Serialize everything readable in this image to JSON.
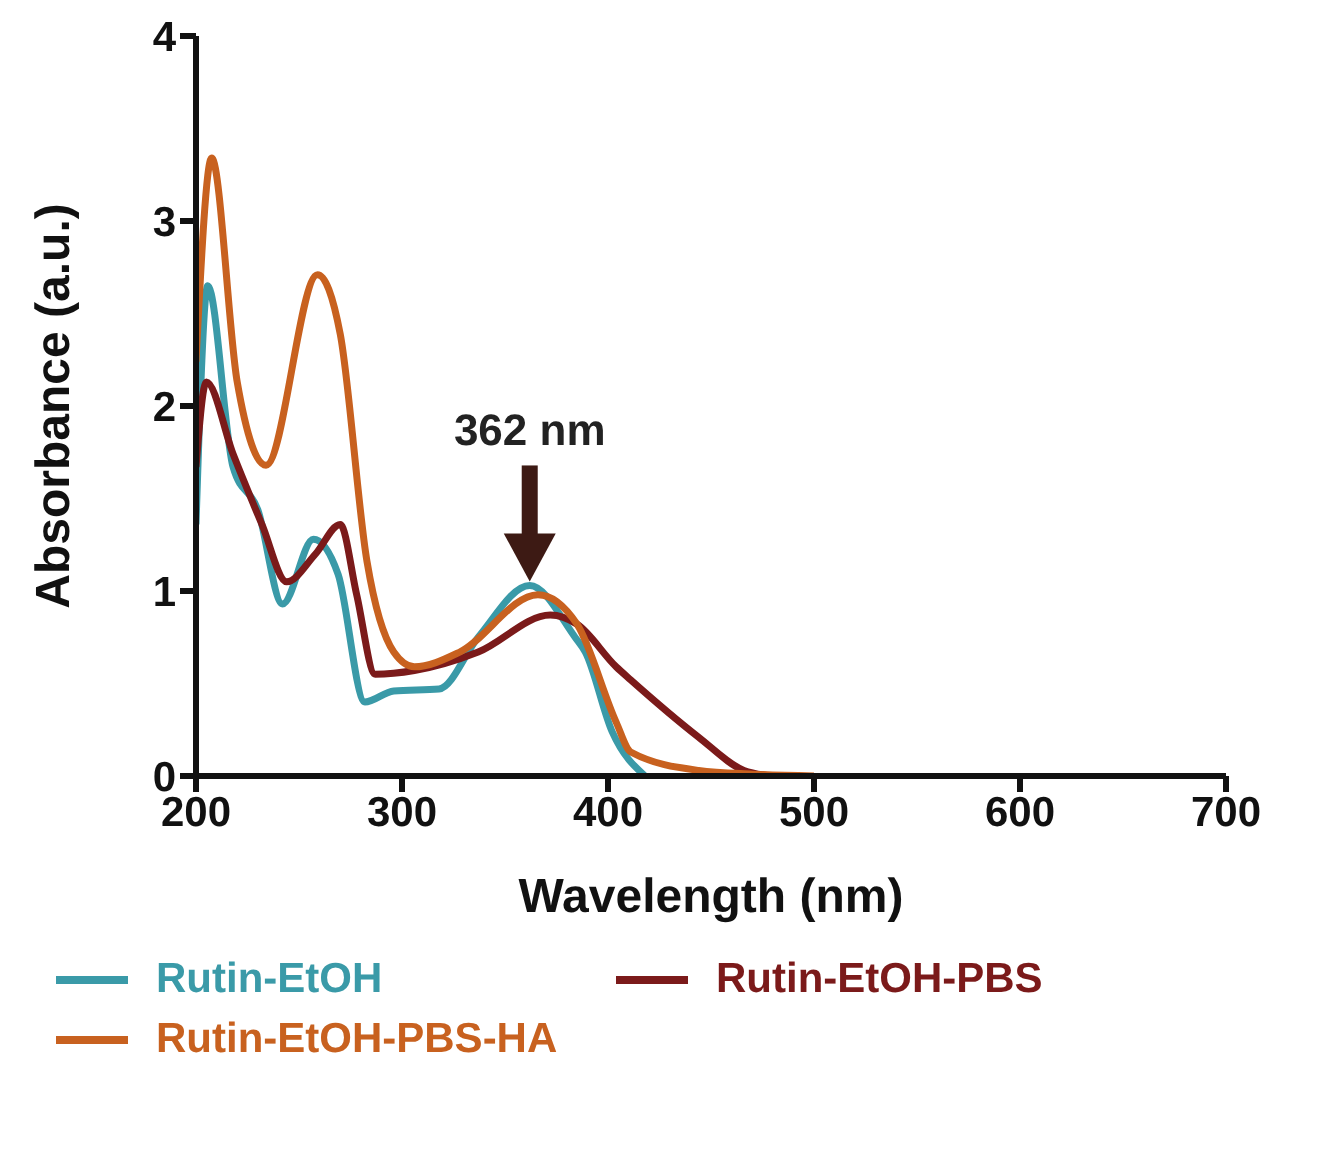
{
  "chart_data": {
    "type": "line",
    "xlabel": "Wavelength (nm)",
    "ylabel": "Absorbance (a.u.)",
    "xlim": [
      200,
      700
    ],
    "xticks": [
      200,
      300,
      400,
      500,
      600,
      700
    ],
    "ylim": [
      0,
      4
    ],
    "yticks": [
      0,
      1,
      2,
      3,
      4
    ],
    "grid": false,
    "legend": "bottom",
    "annotations": [
      {
        "text": "362 nm",
        "x": 362,
        "y": 1.03
      }
    ],
    "series": [
      {
        "name": "Rutin-EtOH",
        "color": "#3a9aa8",
        "x": [
          200,
          205.7,
          218,
          230,
          242,
          257,
          269,
          282,
          296,
          318,
          337,
          362,
          384,
          389,
          402,
          418
        ],
        "values": [
          1.36,
          2.65,
          1.67,
          1.44,
          0.93,
          1.28,
          1.09,
          0.4,
          0.46,
          0.47,
          0.75,
          1.03,
          0.75,
          0.67,
          0.24,
          0
        ]
      },
      {
        "name": "Rutin-EtOH-PBS",
        "color": "#7b1a1a",
        "x": [
          200,
          205,
          218,
          232,
          244,
          258,
          270,
          278,
          287,
          306,
          337,
          372,
          385,
          404,
          411,
          444,
          466,
          480
        ],
        "values": [
          1.67,
          2.13,
          1.74,
          1.36,
          1.05,
          1.2,
          1.36,
          0.98,
          0.55,
          0.57,
          0.67,
          0.87,
          0.82,
          0.59,
          0.52,
          0.21,
          0.03,
          0
        ]
      },
      {
        "name": "Rutin-EtOH-PBS-HA",
        "color": "#c8611f",
        "x": [
          200,
          207.6,
          220,
          234,
          259,
          270,
          283,
          296,
          306,
          328,
          366,
          385,
          404,
          411,
          444,
          470,
          500
        ],
        "values": [
          2.24,
          3.34,
          2.13,
          1.68,
          2.71,
          2.39,
          1.16,
          0.67,
          0.59,
          0.67,
          0.98,
          0.82,
          0.29,
          0.13,
          0.03,
          0.01,
          0
        ]
      }
    ]
  }
}
